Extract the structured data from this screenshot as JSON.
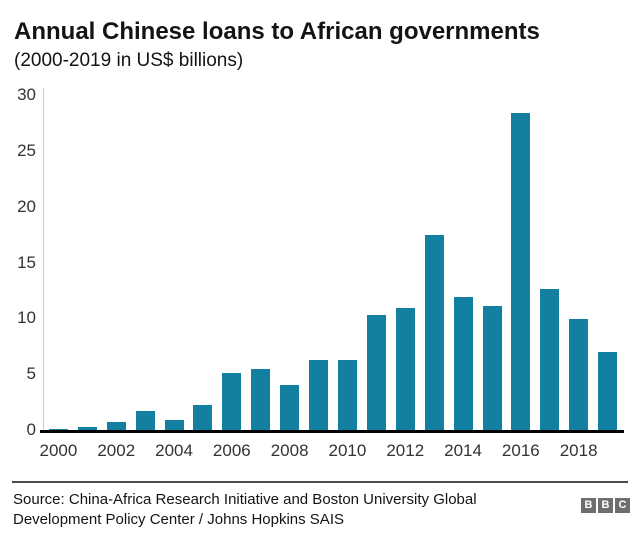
{
  "header": {
    "title": "Annual Chinese loans to African governments",
    "subtitle": "(2000-2019 in US$ billions)"
  },
  "chart_data": {
    "type": "bar",
    "title": "Annual Chinese loans to African governments",
    "subtitle": "(2000-2019 in US$ billions)",
    "categories": [
      2000,
      2001,
      2002,
      2003,
      2004,
      2005,
      2006,
      2007,
      2008,
      2009,
      2010,
      2011,
      2012,
      2013,
      2014,
      2015,
      2016,
      2017,
      2018,
      2019
    ],
    "values": [
      0.1,
      0.3,
      0.7,
      1.7,
      0.9,
      2.2,
      5.1,
      5.5,
      4.0,
      6.3,
      6.3,
      10.3,
      10.9,
      17.5,
      11.9,
      11.1,
      28.4,
      12.6,
      9.9,
      7.0
    ],
    "xlabel": "",
    "ylabel": "",
    "ylim": [
      0,
      30
    ],
    "yticks": [
      0,
      5,
      10,
      15,
      20,
      25,
      30
    ],
    "xticks": [
      2000,
      2002,
      2004,
      2006,
      2008,
      2010,
      2012,
      2014,
      2016,
      2018
    ],
    "grid": false,
    "legend": "none",
    "bar_color": "#1380A1"
  },
  "footer": {
    "source_line1": "Source: China-Africa Research Initiative and Boston University Global",
    "source_line2": "Development Policy Center / Johns Hopkins SAIS",
    "logo_letters": [
      "B",
      "B",
      "C"
    ]
  },
  "colors": {
    "bar": "#1380A1",
    "axis_line": "#cccccc",
    "baseline": "#000000",
    "text": "#141414",
    "tick_text": "#333333",
    "divider": "#4d4d4d",
    "logo_block": "#6e6e6e"
  }
}
